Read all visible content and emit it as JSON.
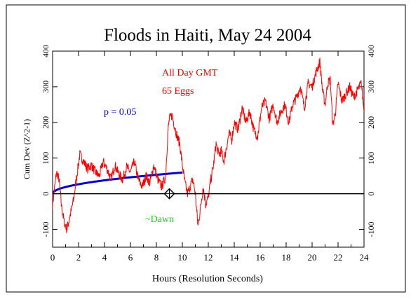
{
  "chart_data": {
    "type": "line",
    "title": "Floods in Haiti, May 24 2004",
    "xlabel": "Hours (Resolution Seconds)",
    "ylabel": "Cum Dev (Z^2-1)",
    "xlim": [
      0,
      24
    ],
    "ylim": [
      -150,
      400
    ],
    "xticks": [
      0,
      2,
      4,
      6,
      8,
      10,
      12,
      14,
      16,
      18,
      20,
      22,
      24
    ],
    "yticks": [
      -100,
      0,
      100,
      200,
      300,
      400
    ],
    "grid": false,
    "annotations": {
      "period": "All Day GMT",
      "eggs": "65 Eggs",
      "dawn": "~Dawn",
      "dawn_hour": 9.0,
      "dawn_value": 0
    },
    "series": [
      {
        "name": "Cumulative deviation",
        "color": "#ff0000",
        "x": [
          0,
          0.3,
          0.5,
          0.7,
          0.9,
          1.1,
          1.3,
          1.6,
          1.9,
          2.1,
          2.4,
          2.7,
          3.0,
          3.3,
          3.6,
          3.9,
          4.2,
          4.5,
          4.8,
          5.1,
          5.4,
          5.7,
          6.0,
          6.3,
          6.6,
          6.9,
          7.2,
          7.5,
          7.8,
          8.1,
          8.4,
          8.7,
          8.9,
          9.0,
          9.2,
          9.4,
          9.6,
          9.8,
          10.0,
          10.2,
          10.4,
          10.6,
          10.8,
          11.0,
          11.2,
          11.4,
          11.6,
          11.8,
          12.0,
          12.2,
          12.4,
          12.6,
          12.8,
          13.0,
          13.2,
          13.4,
          13.6,
          13.8,
          14.0,
          14.3,
          14.6,
          14.9,
          15.2,
          15.5,
          15.8,
          16.1,
          16.4,
          16.7,
          17.0,
          17.3,
          17.6,
          17.9,
          18.2,
          18.5,
          18.8,
          19.1,
          19.4,
          19.7,
          20.0,
          20.3,
          20.6,
          20.8,
          21.0,
          21.2,
          21.4,
          21.6,
          21.8,
          22.0,
          22.3,
          22.6,
          22.9,
          23.2,
          23.5,
          23.8,
          24.0
        ],
        "values": [
          -30,
          60,
          40,
          -40,
          -80,
          -100,
          -70,
          -20,
          60,
          110,
          90,
          70,
          80,
          60,
          50,
          90,
          70,
          40,
          80,
          55,
          40,
          75,
          60,
          90,
          40,
          20,
          50,
          30,
          80,
          40,
          20,
          45,
          180,
          210,
          220,
          190,
          160,
          140,
          80,
          30,
          0,
          20,
          40,
          0,
          -90,
          -40,
          20,
          -30,
          -10,
          40,
          80,
          140,
          110,
          120,
          90,
          130,
          170,
          150,
          200,
          180,
          240,
          200,
          230,
          180,
          160,
          240,
          260,
          210,
          250,
          200,
          230,
          250,
          200,
          250,
          270,
          300,
          240,
          310,
          300,
          340,
          370,
          290,
          250,
          310,
          320,
          190,
          230,
          310,
          260,
          280,
          300,
          270,
          290,
          310,
          230
        ]
      },
      {
        "name": "p = 0.05",
        "color": "#0000cc",
        "values": "1.96 * sqrt(2 * 65 * 3600 * t)"
      }
    ]
  }
}
